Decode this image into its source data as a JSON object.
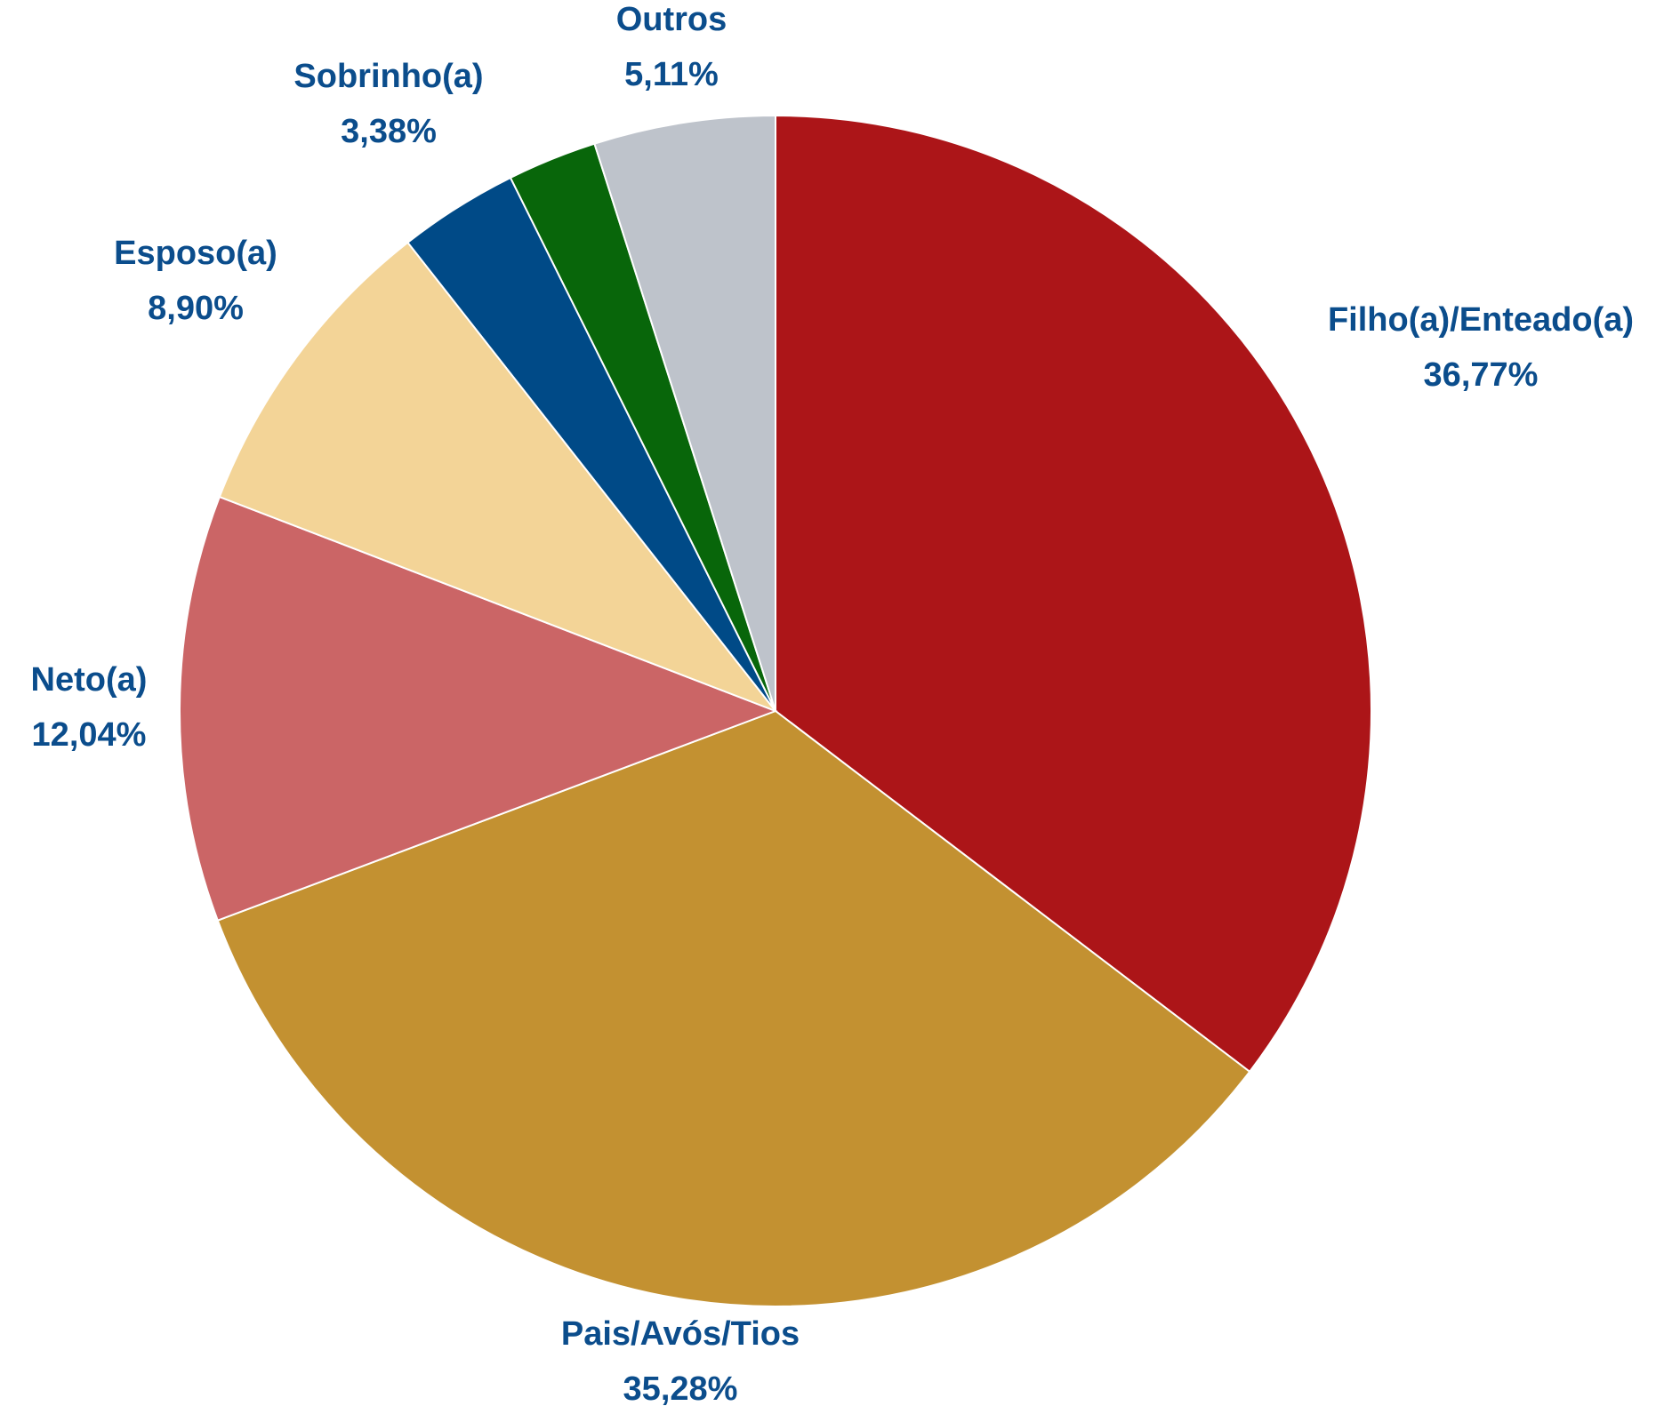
{
  "chart_data": {
    "type": "pie",
    "start_angle_deg": 0,
    "direction": "clockwise",
    "slices": [
      {
        "label": "Filho(a)/Enteado(a)",
        "value": 36.77,
        "value_label": "36,77%",
        "color": "#AC1518"
      },
      {
        "label": "Pais/Avós/Tios",
        "value": 35.28,
        "value_label": "35,28%",
        "color": "#C39131"
      },
      {
        "label": "Neto(a)",
        "value": 12.04,
        "value_label": "12,04%",
        "color": "#CB6566"
      },
      {
        "label": "Esposo(a)",
        "value": 8.9,
        "value_label": "8,90%",
        "color": "#F3D497"
      },
      {
        "label": "Sobrinho(a)",
        "value": 3.38,
        "value_label": "3,38%",
        "color": "#004A87"
      },
      {
        "label": "",
        "value": 2.52,
        "value_label": "",
        "color": "#08660A"
      },
      {
        "label": "Outros",
        "value": 5.11,
        "value_label": "5,11%",
        "color": "#BEC3CB"
      }
    ],
    "label_color": "#0B4D8C"
  }
}
